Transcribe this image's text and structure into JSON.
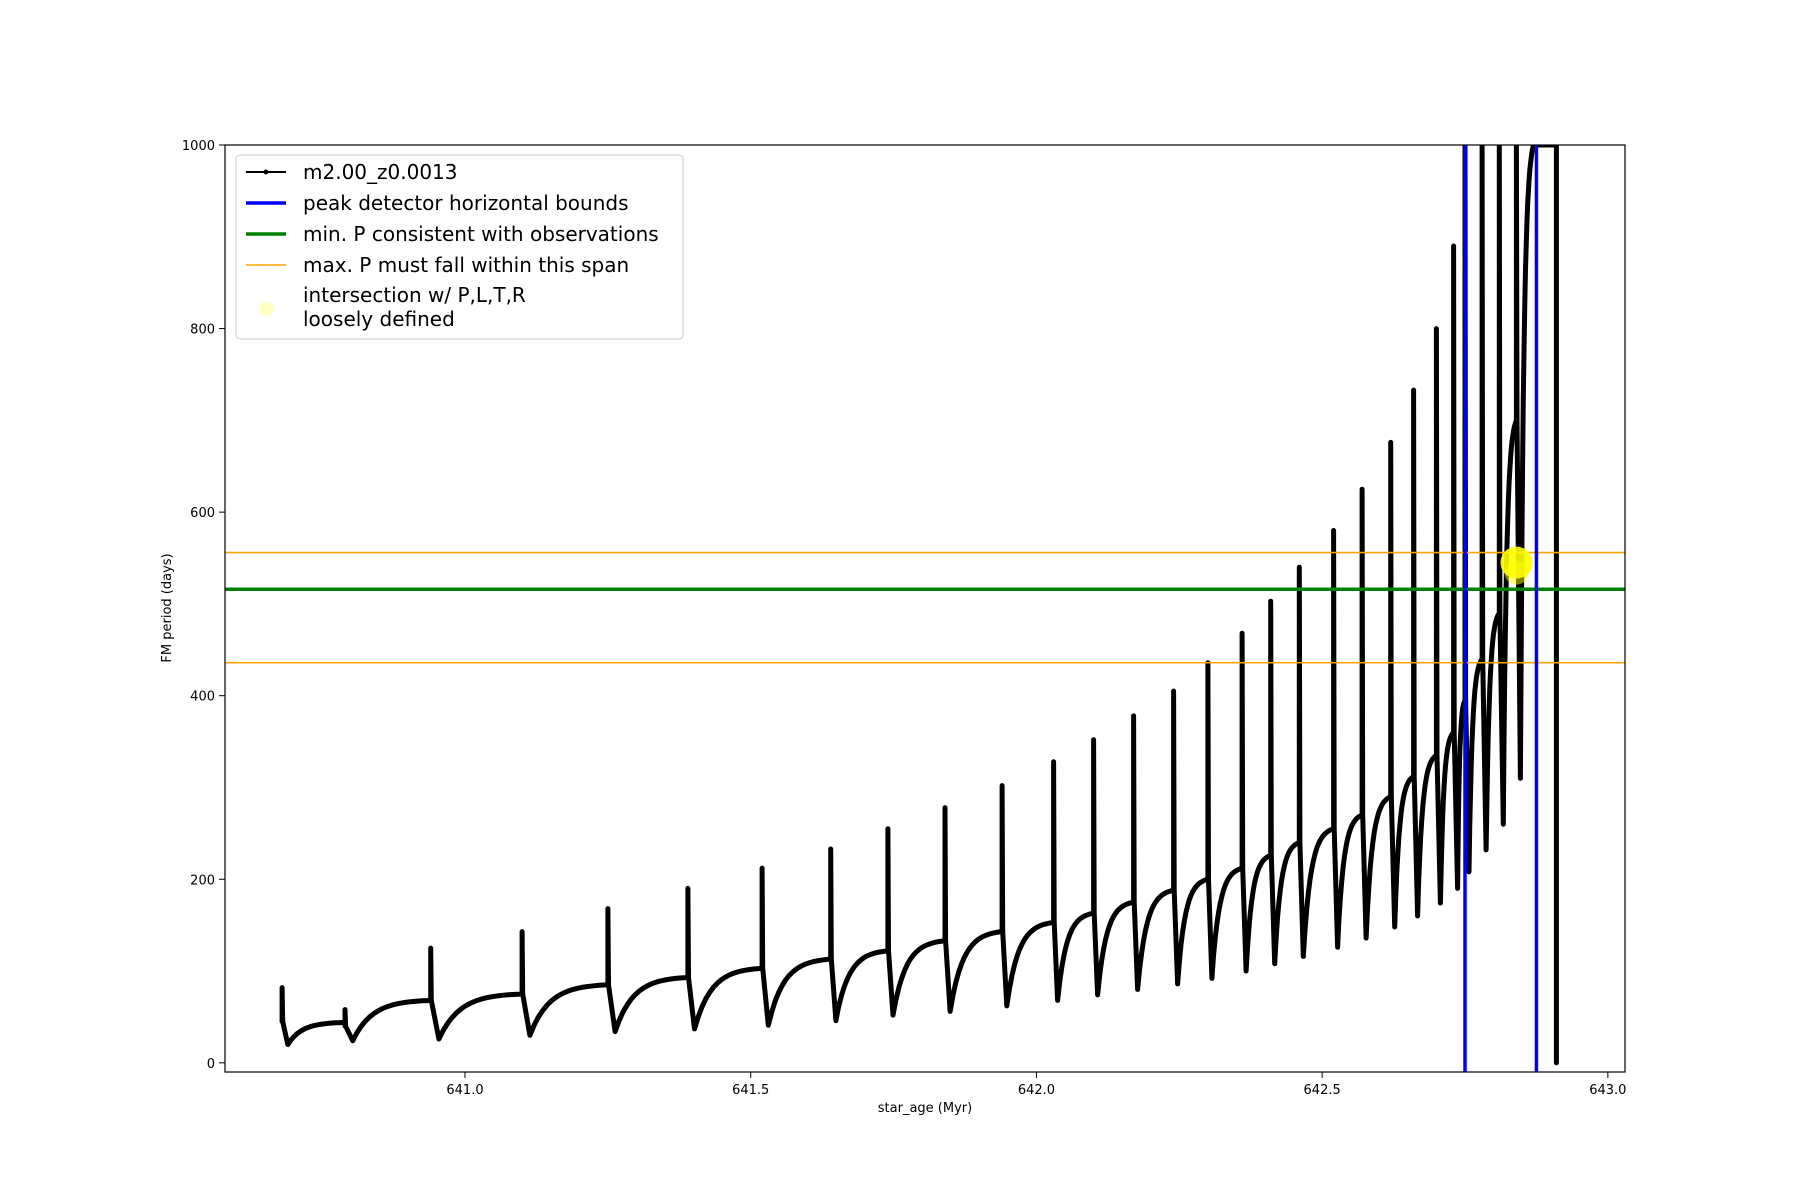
{
  "chart_data": {
    "type": "line",
    "title": "",
    "xlabel": "star_age (Myr)",
    "ylabel": "FM period (days)",
    "xlim": [
      640.58,
      643.03
    ],
    "ylim": [
      -10,
      1000
    ],
    "xticks": [
      641.0,
      641.5,
      642.0,
      642.5,
      643.0
    ],
    "xtick_labels": [
      "641.0",
      "641.5",
      "642.0",
      "642.5",
      "643.0"
    ],
    "yticks": [
      0,
      200,
      400,
      600,
      800,
      1000
    ],
    "ytick_labels": [
      "0",
      "200",
      "400",
      "600",
      "800",
      "1000"
    ],
    "grid": false,
    "legend_position": "top-left",
    "legend": [
      {
        "label": "m2.00_z0.0013",
        "kind": "line-marker",
        "color": "#000000"
      },
      {
        "label": "peak detector horizontal bounds",
        "kind": "line",
        "color": "#0000ff"
      },
      {
        "label": "min. P consistent with observations",
        "kind": "line",
        "color": "#008000"
      },
      {
        "label": "max. P must fall within this span",
        "kind": "line",
        "color": "#ffa500"
      },
      {
        "label": "intersection w/ P,L,T,R",
        "label2": "loosely defined",
        "kind": "marker",
        "color": "#ffff00"
      }
    ],
    "series_name": "m2.00_z0.0013",
    "series_color": "#000000",
    "cycles": [
      {
        "x0": 640.68,
        "x1": 640.79,
        "spike": 82,
        "jump": 45,
        "dip": 20,
        "plateau": 44
      },
      {
        "x0": 640.79,
        "x1": 640.94,
        "spike": 58,
        "jump": 40,
        "dip": 24,
        "plateau": 68
      },
      {
        "x0": 640.94,
        "x1": 641.1,
        "spike": 125,
        "jump": 68,
        "dip": 26,
        "plateau": 75
      },
      {
        "x0": 641.1,
        "x1": 641.25,
        "spike": 143,
        "jump": 75,
        "dip": 30,
        "plateau": 85
      },
      {
        "x0": 641.25,
        "x1": 641.39,
        "spike": 168,
        "jump": 85,
        "dip": 34,
        "plateau": 93
      },
      {
        "x0": 641.39,
        "x1": 641.52,
        "spike": 190,
        "jump": 93,
        "dip": 37,
        "plateau": 103
      },
      {
        "x0": 641.52,
        "x1": 641.64,
        "spike": 212,
        "jump": 103,
        "dip": 41,
        "plateau": 113
      },
      {
        "x0": 641.64,
        "x1": 641.74,
        "spike": 233,
        "jump": 113,
        "dip": 46,
        "plateau": 122
      },
      {
        "x0": 641.74,
        "x1": 641.84,
        "spike": 255,
        "jump": 122,
        "dip": 52,
        "plateau": 133
      },
      {
        "x0": 641.84,
        "x1": 641.94,
        "spike": 278,
        "jump": 133,
        "dip": 56,
        "plateau": 143
      },
      {
        "x0": 641.94,
        "x1": 642.03,
        "spike": 302,
        "jump": 143,
        "dip": 62,
        "plateau": 153
      },
      {
        "x0": 642.03,
        "x1": 642.1,
        "spike": 328,
        "jump": 153,
        "dip": 68,
        "plateau": 163
      },
      {
        "x0": 642.1,
        "x1": 642.17,
        "spike": 352,
        "jump": 163,
        "dip": 74,
        "plateau": 175
      },
      {
        "x0": 642.17,
        "x1": 642.24,
        "spike": 378,
        "jump": 175,
        "dip": 80,
        "plateau": 188
      },
      {
        "x0": 642.24,
        "x1": 642.3,
        "spike": 405,
        "jump": 188,
        "dip": 86,
        "plateau": 200
      },
      {
        "x0": 642.3,
        "x1": 642.36,
        "spike": 436,
        "jump": 200,
        "dip": 92,
        "plateau": 212
      },
      {
        "x0": 642.36,
        "x1": 642.41,
        "spike": 468,
        "jump": 212,
        "dip": 100,
        "plateau": 226
      },
      {
        "x0": 642.41,
        "x1": 642.46,
        "spike": 503,
        "jump": 226,
        "dip": 108,
        "plateau": 240
      },
      {
        "x0": 642.46,
        "x1": 642.52,
        "spike": 540,
        "jump": 240,
        "dip": 116,
        "plateau": 255
      },
      {
        "x0": 642.52,
        "x1": 642.57,
        "spike": 580,
        "jump": 255,
        "dip": 126,
        "plateau": 270
      },
      {
        "x0": 642.57,
        "x1": 642.62,
        "spike": 625,
        "jump": 270,
        "dip": 136,
        "plateau": 290
      },
      {
        "x0": 642.62,
        "x1": 642.66,
        "spike": 676,
        "jump": 290,
        "dip": 148,
        "plateau": 312
      },
      {
        "x0": 642.66,
        "x1": 642.7,
        "spike": 733,
        "jump": 312,
        "dip": 160,
        "plateau": 335
      },
      {
        "x0": 642.7,
        "x1": 642.73,
        "spike": 800,
        "jump": 335,
        "dip": 174,
        "plateau": 360
      },
      {
        "x0": 642.73,
        "x1": 642.75,
        "spike": 890,
        "jump": 360,
        "dip": 190,
        "plateau": 395
      },
      {
        "x0": 642.75,
        "x1": 642.78,
        "spike": 1000,
        "jump": 395,
        "dip": 208,
        "plateau": 440
      },
      {
        "x0": 642.78,
        "x1": 642.81,
        "spike": 1000,
        "jump": 440,
        "dip": 232,
        "plateau": 490
      },
      {
        "x0": 642.81,
        "x1": 642.84,
        "spike": 1000,
        "jump": 490,
        "dip": 260,
        "plateau": 700
      },
      {
        "x0": 642.84,
        "x1": 642.87,
        "spike": 1000,
        "jump": 700,
        "dip": 310,
        "plateau": 1000
      }
    ],
    "final_drop": {
      "x": 642.91,
      "y_top": 1000,
      "y_bottom": 0
    },
    "vertical_lines": {
      "label": "peak detector horizontal bounds",
      "x": [
        642.75,
        642.875
      ],
      "color": "#0000ff"
    },
    "horizontal_lines": [
      {
        "label": "min. P consistent with observations",
        "y": 516,
        "color": "#008000"
      },
      {
        "label": "max. P must fall within this span",
        "y": 556,
        "color": "#ffa500"
      },
      {
        "label": "max. P must fall within this span",
        "y": 436,
        "color": "#ffa500"
      }
    ],
    "intersection_points": [
      {
        "label": "intersection w/ P,L,T,R loosely defined",
        "x": 642.84,
        "y": 545,
        "color": "#ffff00"
      }
    ]
  }
}
